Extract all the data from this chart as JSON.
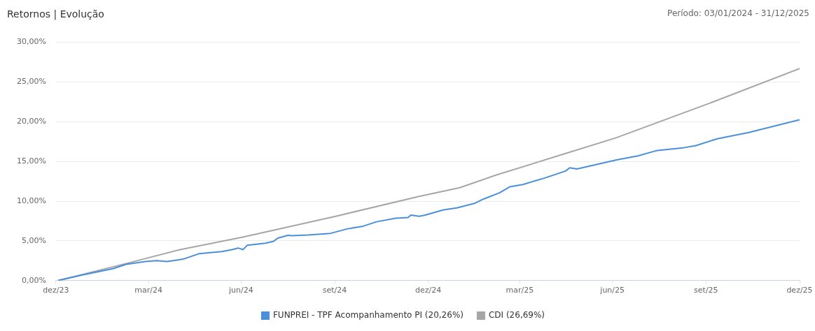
{
  "chart_data": {
    "type": "line",
    "title": "Retornos | Evolução",
    "subtitle": "Período: 03/01/2024 - 31/12/2025",
    "xlim": [
      "2023-12-31",
      "2025-12-31"
    ],
    "xticks": [
      {
        "value": "2023-12-31",
        "label": "dez/23"
      },
      {
        "value": "2024-03-31",
        "label": "mar/24"
      },
      {
        "value": "2024-06-30",
        "label": "jun/24"
      },
      {
        "value": "2024-09-30",
        "label": "set/24"
      },
      {
        "value": "2024-12-31",
        "label": "dez/24"
      },
      {
        "value": "2025-03-31",
        "label": "mar/25"
      },
      {
        "value": "2025-06-30",
        "label": "jun/25"
      },
      {
        "value": "2025-09-30",
        "label": "set/25"
      },
      {
        "value": "2025-12-31",
        "label": "dez/25"
      }
    ],
    "ylim": [
      0,
      30
    ],
    "yticks": [
      {
        "value": 0,
        "label": "0,00%"
      },
      {
        "value": 5,
        "label": "5,00%"
      },
      {
        "value": 10,
        "label": "10,00%"
      },
      {
        "value": 15,
        "label": "15,00%"
      },
      {
        "value": 20,
        "label": "20,00%"
      },
      {
        "value": 25,
        "label": "25,00%"
      },
      {
        "value": 30,
        "label": "30,00%"
      }
    ],
    "grid": "y",
    "legend": "bottom",
    "marker": "none",
    "line_style": "solid",
    "series": [
      {
        "name": "FUNPREI - TPF Acompanhamento PI (20,26%)",
        "color": "#4a8fdc",
        "x": [
          "2024-01-02",
          "2024-01-26",
          "2024-02-25",
          "2024-03-09",
          "2024-03-28",
          "2024-04-08",
          "2024-04-18",
          "2024-05-04",
          "2024-05-20",
          "2024-06-11",
          "2024-06-21",
          "2024-06-27",
          "2024-07-02",
          "2024-07-06",
          "2024-07-24",
          "2024-08-01",
          "2024-08-05",
          "2024-08-15",
          "2024-08-19",
          "2024-09-04",
          "2024-09-26",
          "2024-10-12",
          "2024-10-28",
          "2024-11-10",
          "2024-11-29",
          "2024-12-11",
          "2024-12-14",
          "2024-12-22",
          "2024-12-28",
          "2025-01-15",
          "2025-01-28",
          "2025-02-15",
          "2025-02-23",
          "2025-03-11",
          "2025-03-21",
          "2025-04-03",
          "2025-04-24",
          "2025-05-15",
          "2025-05-19",
          "2025-05-26",
          "2025-07-04",
          "2025-07-25",
          "2025-08-12",
          "2025-09-07",
          "2025-09-20",
          "2025-10-11",
          "2025-11-11",
          "2025-12-31"
        ],
        "values": [
          0,
          0.7,
          1.5,
          2.05,
          2.4,
          2.5,
          2.4,
          2.7,
          3.4,
          3.65,
          3.9,
          4.1,
          3.9,
          4.45,
          4.7,
          4.95,
          5.35,
          5.7,
          5.65,
          5.75,
          5.95,
          6.5,
          6.85,
          7.4,
          7.85,
          7.95,
          8.25,
          8.1,
          8.25,
          8.9,
          9.15,
          9.75,
          10.25,
          11.05,
          11.8,
          12.1,
          12.9,
          13.8,
          14.2,
          14.05,
          15.2,
          15.7,
          16.35,
          16.7,
          17.0,
          17.85,
          18.65,
          20.26
        ]
      },
      {
        "name": "CDI (26,69%)",
        "color": "#a6a6a6",
        "x": [
          "2024-01-02",
          "2024-03-09",
          "2024-05-01",
          "2024-07-01",
          "2024-10-01",
          "2024-12-22",
          "2025-01-31",
          "2025-03-08",
          "2025-05-15",
          "2025-07-04",
          "2025-10-03",
          "2025-12-31"
        ],
        "values": [
          0,
          2.15,
          3.9,
          5.45,
          8.1,
          10.6,
          11.7,
          13.3,
          16.0,
          18.0,
          22.3,
          26.69
        ]
      }
    ]
  }
}
